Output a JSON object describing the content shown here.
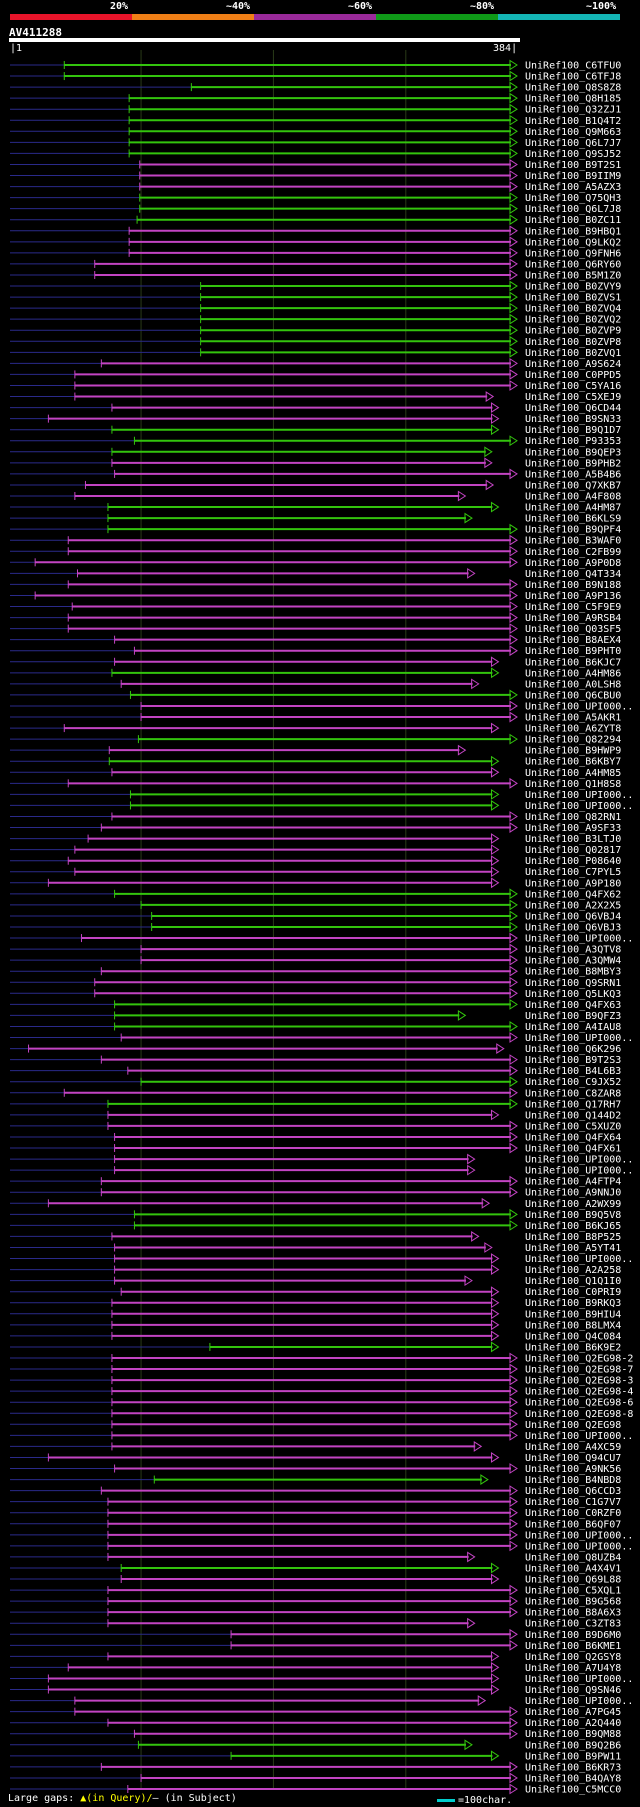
{
  "chart_data": {
    "type": "alignment-overview",
    "query": "AV411288",
    "query_range": [
      1,
      384
    ],
    "identity_legend": [
      {
        "label": "20%",
        "color": "#e8142a"
      },
      {
        "label": "~40%",
        "color": "#f07f16"
      },
      {
        "label": "~60%",
        "color": "#9a2a9a"
      },
      {
        "label": "~80%",
        "color": "#0f9a18"
      },
      {
        "label": "~100%",
        "color": "#14b5b5"
      }
    ],
    "series_colors": {
      "magenta": "#c344c3",
      "green": "#33c40d",
      "gap": "#ffff66",
      "thin": "#2a2a8a"
    },
    "hits": [
      {
        "name": "UniRef100_C6TFU0",
        "color": "green",
        "start": 42,
        "end": 384
      },
      {
        "name": "UniRef100_C6TFJ8",
        "color": "green",
        "start": 42,
        "end": 384
      },
      {
        "name": "UniRef100_Q8S8Z8",
        "color": "green",
        "start": 138,
        "end": 384
      },
      {
        "name": "UniRef100_Q8H185",
        "color": "green",
        "start": 91,
        "end": 384
      },
      {
        "name": "UniRef100_Q32ZJ1",
        "color": "green",
        "start": 91,
        "end": 384
      },
      {
        "name": "UniRef100_B1Q4T2",
        "color": "green",
        "start": 91,
        "end": 384
      },
      {
        "name": "UniRef100_Q9M663",
        "color": "green",
        "start": 91,
        "end": 384
      },
      {
        "name": "UniRef100_Q6L7J7",
        "color": "green",
        "start": 91,
        "end": 384
      },
      {
        "name": "UniRef100_Q9SJ52",
        "color": "green",
        "start": 91,
        "end": 384
      },
      {
        "name": "UniRef100_B9T2S1",
        "color": "magenta",
        "start": 99,
        "end": 384
      },
      {
        "name": "UniRef100_B9IIM9",
        "color": "magenta",
        "start": 99,
        "end": 384
      },
      {
        "name": "UniRef100_A5AZX3",
        "color": "magenta",
        "start": 99,
        "end": 384
      },
      {
        "name": "UniRef100_Q75QH3",
        "color": "green",
        "start": 99,
        "end": 384
      },
      {
        "name": "UniRef100_Q6L7J8",
        "color": "green",
        "start": 99,
        "end": 384
      },
      {
        "name": "UniRef100_B0ZC11",
        "color": "green",
        "start": 97,
        "end": 384
      },
      {
        "name": "UniRef100_B9HBQ1",
        "color": "magenta",
        "start": 91,
        "end": 384
      },
      {
        "name": "UniRef100_Q9LKQ2",
        "color": "magenta",
        "start": 91,
        "end": 384
      },
      {
        "name": "UniRef100_Q9FNH6",
        "color": "magenta",
        "start": 91,
        "end": 384
      },
      {
        "name": "UniRef100_Q6RY60",
        "color": "magenta",
        "start": 65,
        "end": 384
      },
      {
        "name": "UniRef100_B5M1Z0",
        "color": "magenta",
        "start": 65,
        "end": 384
      },
      {
        "name": "UniRef100_B0ZVY9",
        "color": "green",
        "start": 145,
        "end": 384
      },
      {
        "name": "UniRef100_B0ZVS1",
        "color": "green",
        "start": 145,
        "end": 384
      },
      {
        "name": "UniRef100_B0ZVQ4",
        "color": "green",
        "start": 145,
        "end": 384
      },
      {
        "name": "UniRef100_B0ZVQ2",
        "color": "green",
        "start": 145,
        "end": 384
      },
      {
        "name": "UniRef100_B0ZVP9",
        "color": "green",
        "start": 145,
        "end": 384
      },
      {
        "name": "UniRef100_B0ZVP8",
        "color": "green",
        "start": 145,
        "end": 384
      },
      {
        "name": "UniRef100_B0ZVQ1",
        "color": "green",
        "start": 145,
        "end": 384
      },
      {
        "name": "UniRef100_A9S624",
        "color": "magenta",
        "start": 70,
        "end": 384
      },
      {
        "name": "UniRef100_C0PPD5",
        "color": "magenta",
        "start": 50,
        "end": 384
      },
      {
        "name": "UniRef100_C5YA16",
        "color": "magenta",
        "start": 50,
        "end": 384
      },
      {
        "name": "UniRef100_C5XEJ9",
        "color": "magenta",
        "start": 50,
        "end": 366
      },
      {
        "name": "UniRef100_Q6CD44",
        "color": "magenta",
        "start": 78,
        "end": 370
      },
      {
        "name": "UniRef100_B9SN33",
        "color": "magenta",
        "start": 30,
        "end": 370
      },
      {
        "name": "UniRef100_B9Q1D7",
        "color": "green",
        "start": 78,
        "end": 370
      },
      {
        "name": "UniRef100_P93353",
        "color": "green",
        "start": 95,
        "end": 384
      },
      {
        "name": "UniRef100_B9QEP3",
        "color": "green",
        "start": 78,
        "end": 365
      },
      {
        "name": "UniRef100_B9PHB2",
        "color": "magenta",
        "start": 78,
        "end": 365
      },
      {
        "name": "UniRef100_A5B4B6",
        "color": "magenta",
        "start": 80,
        "end": 384
      },
      {
        "name": "UniRef100_Q7XKB7",
        "color": "magenta",
        "start": 58,
        "end": 366
      },
      {
        "name": "UniRef100_A4F808",
        "color": "magenta",
        "start": 50,
        "end": 345
      },
      {
        "name": "UniRef100_A4HM87",
        "color": "green",
        "start": 75,
        "end": 370
      },
      {
        "name": "UniRef100_B6KLS9",
        "color": "green",
        "start": 75,
        "end": 350
      },
      {
        "name": "UniRef100_B9QPF4",
        "color": "green",
        "start": 75,
        "end": 384
      },
      {
        "name": "UniRef100_B3WAF0",
        "color": "magenta",
        "start": 45,
        "end": 384
      },
      {
        "name": "UniRef100_C2FB99",
        "color": "magenta",
        "start": 45,
        "end": 384
      },
      {
        "name": "UniRef100_A9P0D8",
        "color": "magenta",
        "start": 20,
        "end": 384
      },
      {
        "name": "UniRef100_Q4T334",
        "color": "magenta",
        "start": 52,
        "end": 352
      },
      {
        "name": "UniRef100_B9N188",
        "color": "magenta",
        "start": 45,
        "end": 384
      },
      {
        "name": "UniRef100_A9P136",
        "color": "magenta",
        "start": 20,
        "end": 384
      },
      {
        "name": "UniRef100_C5F9E9",
        "color": "magenta",
        "start": 48,
        "end": 384
      },
      {
        "name": "UniRef100_A9RSB4",
        "color": "magenta",
        "start": 45,
        "end": 384
      },
      {
        "name": "UniRef100_Q03SF5",
        "color": "magenta",
        "start": 45,
        "end": 384
      },
      {
        "name": "UniRef100_B8AEX4",
        "color": "magenta",
        "start": 80,
        "end": 384
      },
      {
        "name": "UniRef100_B9PHT0",
        "color": "magenta",
        "start": 95,
        "end": 384
      },
      {
        "name": "UniRef100_B6KJC7",
        "color": "magenta",
        "start": 80,
        "end": 370
      },
      {
        "name": "UniRef100_A4HM86",
        "color": "green",
        "start": 78,
        "end": 370
      },
      {
        "name": "UniRef100_A0LSH8",
        "color": "magenta",
        "start": 85,
        "end": 355
      },
      {
        "name": "UniRef100_Q6CBU0",
        "color": "green",
        "start": 92,
        "end": 384
      },
      {
        "name": "UniRef100_UPI000..",
        "color": "magenta",
        "start": 100,
        "end": 384
      },
      {
        "name": "UniRef100_A5AKR1",
        "color": "magenta",
        "start": 100,
        "end": 384
      },
      {
        "name": "UniRef100_A6ZYT8",
        "color": "magenta",
        "start": 42,
        "end": 370
      },
      {
        "name": "UniRef100_Q82294",
        "color": "green",
        "start": 98,
        "end": 384
      },
      {
        "name": "UniRef100_B9HWP9",
        "color": "magenta",
        "start": 76,
        "end": 345
      },
      {
        "name": "UniRef100_B6KBY7",
        "color": "green",
        "start": 76,
        "end": 370
      },
      {
        "name": "UniRef100_A4HM85",
        "color": "magenta",
        "start": 78,
        "end": 370
      },
      {
        "name": "UniRef100_Q1H8S8",
        "color": "magenta",
        "start": 45,
        "end": 384
      },
      {
        "name": "UniRef100_UPI000..",
        "color": "green",
        "start": 92,
        "end": 370
      },
      {
        "name": "UniRef100_UPI000..",
        "color": "green",
        "start": 92,
        "end": 370
      },
      {
        "name": "UniRef100_Q82RN1",
        "color": "magenta",
        "start": 78,
        "end": 384
      },
      {
        "name": "UniRef100_A9SF33",
        "color": "magenta",
        "start": 70,
        "end": 384
      },
      {
        "name": "UniRef100_B3LTJ0",
        "color": "magenta",
        "start": 60,
        "end": 370
      },
      {
        "name": "UniRef100_Q02817",
        "color": "magenta",
        "start": 50,
        "end": 370
      },
      {
        "name": "UniRef100_P08640",
        "color": "magenta",
        "start": 45,
        "end": 370
      },
      {
        "name": "UniRef100_C7PYL5",
        "color": "magenta",
        "start": 50,
        "end": 370
      },
      {
        "name": "UniRef100_A9P180",
        "color": "magenta",
        "start": 30,
        "end": 370
      },
      {
        "name": "UniRef100_Q4FX62",
        "color": "green",
        "start": 80,
        "end": 384
      },
      {
        "name": "UniRef100_A2X2X5",
        "color": "green",
        "start": 100,
        "end": 384
      },
      {
        "name": "UniRef100_Q6VBJ4",
        "color": "green",
        "start": 108,
        "end": 384
      },
      {
        "name": "UniRef100_Q6VBJ3",
        "color": "green",
        "start": 108,
        "end": 384
      },
      {
        "name": "UniRef100_UPI000..",
        "color": "magenta",
        "start": 55,
        "end": 384
      },
      {
        "name": "UniRef100_A3QTV8",
        "color": "magenta",
        "start": 100,
        "end": 384
      },
      {
        "name": "UniRef100_A3QMW4",
        "color": "magenta",
        "start": 100,
        "end": 384
      },
      {
        "name": "UniRef100_B8MBY3",
        "color": "magenta",
        "start": 70,
        "end": 384
      },
      {
        "name": "UniRef100_Q9SRN1",
        "color": "magenta",
        "start": 65,
        "end": 384
      },
      {
        "name": "UniRef100_Q5LKQ3",
        "color": "magenta",
        "start": 65,
        "end": 384
      },
      {
        "name": "UniRef100_Q4FX63",
        "color": "green",
        "start": 80,
        "end": 384
      },
      {
        "name": "UniRef100_B9QFZ3",
        "color": "green",
        "start": 80,
        "end": 345
      },
      {
        "name": "UniRef100_A4IAU8",
        "color": "green",
        "start": 80,
        "end": 384
      },
      {
        "name": "UniRef100_UPI000..",
        "color": "magenta",
        "start": 85,
        "end": 384
      },
      {
        "name": "UniRef100_Q6K296",
        "color": "magenta",
        "start": 15,
        "end": 374
      },
      {
        "name": "UniRef100_B9T2S3",
        "color": "magenta",
        "start": 70,
        "end": 384
      },
      {
        "name": "UniRef100_B4L6B3",
        "color": "magenta",
        "start": 90,
        "end": 384
      },
      {
        "name": "UniRef100_C9JX52",
        "color": "green",
        "start": 100,
        "end": 384
      },
      {
        "name": "UniRef100_C8ZAR8",
        "color": "magenta",
        "start": 42,
        "end": 384
      },
      {
        "name": "UniRef100_Q17RH7",
        "color": "green",
        "start": 75,
        "end": 384
      },
      {
        "name": "UniRef100_Q144D2",
        "color": "magenta",
        "start": 75,
        "end": 370
      },
      {
        "name": "UniRef100_C5XUZ0",
        "color": "magenta",
        "start": 75,
        "end": 384
      },
      {
        "name": "UniRef100_Q4FX64",
        "color": "magenta",
        "start": 80,
        "end": 384
      },
      {
        "name": "UniRef100_Q4FX61",
        "color": "magenta",
        "start": 80,
        "end": 384
      },
      {
        "name": "UniRef100_UPI000..",
        "color": "magenta",
        "start": 80,
        "end": 352
      },
      {
        "name": "UniRef100_UPI000..",
        "color": "magenta",
        "start": 80,
        "end": 352
      },
      {
        "name": "UniRef100_A4FTP4",
        "color": "magenta",
        "start": 70,
        "end": 384
      },
      {
        "name": "UniRef100_A9NNJ0",
        "color": "magenta",
        "start": 70,
        "end": 384
      },
      {
        "name": "UniRef100_A2WX99",
        "color": "magenta",
        "start": 30,
        "end": 363
      },
      {
        "name": "UniRef100_B9Q5V8",
        "color": "green",
        "start": 95,
        "end": 384
      },
      {
        "name": "UniRef100_B6KJ65",
        "color": "green",
        "start": 95,
        "end": 384
      },
      {
        "name": "UniRef100_B8P525",
        "color": "magenta",
        "start": 78,
        "end": 355
      },
      {
        "name": "UniRef100_A5YT41",
        "color": "magenta",
        "start": 80,
        "end": 365
      },
      {
        "name": "UniRef100_UPI000..",
        "color": "magenta",
        "start": 80,
        "end": 370
      },
      {
        "name": "UniRef100_A2A258",
        "color": "magenta",
        "start": 80,
        "end": 370
      },
      {
        "name": "UniRef100_Q1Q1I0",
        "color": "magenta",
        "start": 80,
        "end": 350
      },
      {
        "name": "UniRef100_C0PRI9",
        "color": "magenta",
        "start": 85,
        "end": 370
      },
      {
        "name": "UniRef100_B9RKQ3",
        "color": "magenta",
        "start": 78,
        "end": 370
      },
      {
        "name": "UniRef100_B9HIU4",
        "color": "magenta",
        "start": 78,
        "end": 370
      },
      {
        "name": "UniRef100_B8LMX4",
        "color": "magenta",
        "start": 78,
        "end": 370
      },
      {
        "name": "UniRef100_Q4C084",
        "color": "magenta",
        "start": 78,
        "end": 370
      },
      {
        "name": "UniRef100_B6K9E2",
        "color": "green",
        "start": 152,
        "end": 370
      },
      {
        "name": "UniRef100_Q2EG98-2",
        "color": "magenta",
        "start": 78,
        "end": 384
      },
      {
        "name": "UniRef100_Q2EG98-7",
        "color": "magenta",
        "start": 78,
        "end": 384
      },
      {
        "name": "UniRef100_Q2EG98-3",
        "color": "magenta",
        "start": 78,
        "end": 384
      },
      {
        "name": "UniRef100_Q2EG98-4",
        "color": "magenta",
        "start": 78,
        "end": 384
      },
      {
        "name": "UniRef100_Q2EG98-6",
        "color": "magenta",
        "start": 78,
        "end": 384
      },
      {
        "name": "UniRef100_Q2EG98-8",
        "color": "magenta",
        "start": 78,
        "end": 384
      },
      {
        "name": "UniRef100_Q2EG98",
        "color": "magenta",
        "start": 78,
        "end": 384
      },
      {
        "name": "UniRef100_UPI000..",
        "color": "magenta",
        "start": 78,
        "end": 384
      },
      {
        "name": "UniRef100_A4XC59",
        "color": "magenta",
        "start": 78,
        "end": 357
      },
      {
        "name": "UniRef100_Q94CU7",
        "color": "magenta",
        "start": 30,
        "end": 370
      },
      {
        "name": "UniRef100_A9NK56",
        "color": "magenta",
        "start": 80,
        "end": 384
      },
      {
        "name": "UniRef100_B4NBD8",
        "color": "green",
        "start": 110,
        "end": 362
      },
      {
        "name": "UniRef100_Q6CCD3",
        "color": "magenta",
        "start": 70,
        "end": 384
      },
      {
        "name": "UniRef100_C1G7V7",
        "color": "magenta",
        "start": 75,
        "end": 384
      },
      {
        "name": "UniRef100_C0RZF0",
        "color": "magenta",
        "start": 75,
        "end": 384
      },
      {
        "name": "UniRef100_B6QF07",
        "color": "magenta",
        "start": 75,
        "end": 384
      },
      {
        "name": "UniRef100_UPI000..",
        "color": "magenta",
        "start": 75,
        "end": 384
      },
      {
        "name": "UniRef100_UPI000..",
        "color": "magenta",
        "start": 75,
        "end": 384
      },
      {
        "name": "UniRef100_Q8UZB4",
        "color": "magenta",
        "start": 75,
        "end": 352
      },
      {
        "name": "UniRef100_A4X4V1",
        "color": "green",
        "start": 85,
        "end": 370
      },
      {
        "name": "UniRef100_Q69L88",
        "color": "magenta",
        "start": 85,
        "end": 370
      },
      {
        "name": "UniRef100_C5XQL1",
        "color": "magenta",
        "start": 75,
        "end": 384
      },
      {
        "name": "UniRef100_B9G568",
        "color": "magenta",
        "start": 75,
        "end": 384
      },
      {
        "name": "UniRef100_B8A6X3",
        "color": "magenta",
        "start": 75,
        "end": 384
      },
      {
        "name": "UniRef100_C3ZT83",
        "color": "magenta",
        "start": 75,
        "end": 352
      },
      {
        "name": "UniRef100_B9D6M0",
        "color": "magenta",
        "start": 168,
        "end": 384
      },
      {
        "name": "UniRef100_B6KME1",
        "color": "magenta",
        "start": 168,
        "end": 384
      },
      {
        "name": "UniRef100_Q2GSY8",
        "color": "magenta",
        "start": 75,
        "end": 370
      },
      {
        "name": "UniRef100_A7U4Y8",
        "color": "magenta",
        "start": 45,
        "end": 370
      },
      {
        "name": "UniRef100_UPI000..",
        "color": "magenta",
        "start": 30,
        "end": 370
      },
      {
        "name": "UniRef100_Q9SN46",
        "color": "magenta",
        "start": 30,
        "end": 370
      },
      {
        "name": "UniRef100_UPI000..",
        "color": "magenta",
        "start": 50,
        "end": 360
      },
      {
        "name": "UniRef100_A7PG45",
        "color": "magenta",
        "start": 50,
        "end": 384
      },
      {
        "name": "UniRef100_A2Q440",
        "color": "magenta",
        "start": 75,
        "end": 384
      },
      {
        "name": "UniRef100_B9QM88",
        "color": "magenta",
        "start": 95,
        "end": 384
      },
      {
        "name": "UniRef100_B9Q2B6",
        "color": "green",
        "start": 98,
        "end": 350
      },
      {
        "name": "UniRef100_B9PW11",
        "color": "green",
        "start": 168,
        "end": 370
      },
      {
        "name": "UniRef100_B6KR73",
        "color": "magenta",
        "start": 70,
        "end": 384
      },
      {
        "name": "UniRef100_B4QAY8",
        "color": "magenta",
        "start": 100,
        "end": 384
      },
      {
        "name": "UniRef100_C5MCC0",
        "color": "magenta",
        "start": 90,
        "end": 384
      }
    ],
    "footer": {
      "gap_label": "Large gaps:",
      "gap_query": "▲(in Query)/",
      "gap_dash": "–",
      "gap_subject": " (in Subject)",
      "scale_label": "=100char."
    }
  }
}
